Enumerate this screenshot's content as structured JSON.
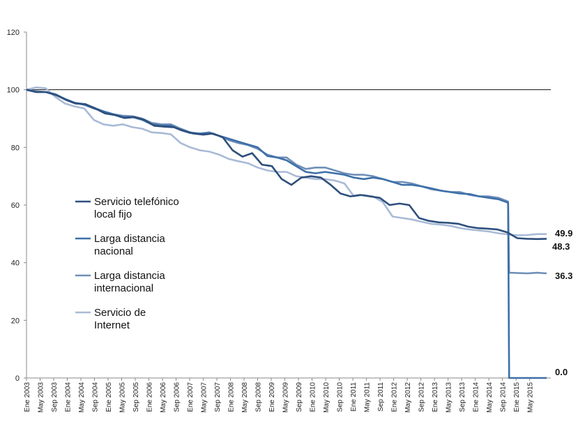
{
  "chart_data": {
    "type": "line",
    "title": "",
    "xlabel": "",
    "ylabel": "",
    "ylim": [
      0,
      120
    ],
    "yticks": [
      "0",
      "20",
      "40",
      "60",
      "80",
      "100",
      "120"
    ],
    "reference_line": 100,
    "grid": false,
    "legend_placement": "left-center",
    "x_tick_labels": [
      "Ene 2003",
      "May 2003",
      "Sep 2003",
      "Ene 2004",
      "May 2004",
      "Sep 2004",
      "Ene 2005",
      "May 2005",
      "Sep 2005",
      "Ene 2006",
      "May 2006",
      "Sep 2006",
      "Ene 2007",
      "May 2007",
      "Sep 2007",
      "Ene 2008",
      "May 2008",
      "Sep 2008",
      "Ene 2009",
      "May 2009",
      "Sep 2009",
      "Ene 2010",
      "May 2010",
      "Sep 2010",
      "Ene 2011",
      "May 2011",
      "Sep 2011",
      "Ene 2012",
      "May 2012",
      "Sep 2012",
      "Ene 2013",
      "May 2013",
      "Sep 2013",
      "Ene 2014",
      "May 2014",
      "Sep 2014",
      "Ene 2015",
      "May 2015"
    ],
    "series": [
      {
        "name": "Servicio telefónico local fijo",
        "color": "#2d4f7c",
        "end_label": "48.3",
        "values": [
          100,
          99.2,
          99.2,
          98.2,
          96.5,
          95.2,
          95,
          93.5,
          91.8,
          91.2,
          90.2,
          90.5,
          89.6,
          87.5,
          87.2,
          87,
          85.8,
          84.8,
          84.4,
          84.8,
          83.5,
          79,
          76.8,
          78,
          74,
          73.5,
          69,
          67,
          69.5,
          70,
          69.5,
          67,
          64,
          63,
          63.5,
          63,
          62.5,
          60,
          60.5,
          60,
          55.5,
          54.5,
          54,
          53.8,
          53.5,
          52.5,
          52,
          51.8,
          51.5,
          50.5,
          48.5,
          48.3,
          48.2,
          48.3
        ]
      },
      {
        "name": "Larga distancia nacional",
        "color": "#3d6fa8",
        "end_label": "0.0",
        "values": [
          100,
          99.2,
          99.2,
          98.2,
          96.8,
          95.5,
          94.8,
          93.5,
          92.5,
          91.5,
          90.5,
          90.5,
          89.6,
          88,
          87.5,
          87.5,
          86,
          85,
          84.8,
          85,
          84,
          83,
          82,
          81,
          80,
          77,
          76.5,
          75.5,
          73.5,
          71.5,
          71,
          71.5,
          71,
          70.5,
          69.5,
          69,
          69.5,
          69,
          68,
          67,
          67,
          66.5,
          65.8,
          65,
          64.5,
          64,
          63.8,
          63,
          62.5,
          62,
          60.8,
          0,
          0,
          0,
          0
        ]
      },
      {
        "name": "Larga distancia internacional",
        "color": "#6f8fb8",
        "end_label": "36.3",
        "values": [
          100,
          99.5,
          99.2,
          98.5,
          96.8,
          95.5,
          95,
          93.8,
          92.5,
          91.5,
          91,
          90.8,
          90,
          88.5,
          88,
          88,
          86.5,
          85.2,
          84.8,
          85.2,
          84,
          82.5,
          81.5,
          80.8,
          79.5,
          77.5,
          76.5,
          76.5,
          74,
          72.5,
          73,
          73,
          72,
          71,
          70.5,
          70.5,
          70,
          69,
          68,
          68,
          67.5,
          66.5,
          65.5,
          65,
          64.5,
          64.5,
          63.5,
          63,
          63,
          62.5,
          61.2,
          36.5,
          36.3,
          36.5,
          36.3
        ]
      },
      {
        "name": "Servicio de Internet",
        "color": "#a9bad6",
        "end_label": "49.9",
        "values": [
          100,
          100.8,
          100.5,
          97.5,
          95.2,
          94.2,
          93.5,
          89.5,
          88,
          87.5,
          88,
          87,
          86.5,
          85.2,
          85,
          84.5,
          81.5,
          80,
          79,
          78.5,
          77.5,
          76,
          75.2,
          74.5,
          73,
          72,
          71.5,
          71.5,
          70,
          69.5,
          69,
          69,
          68.5,
          67.5,
          63,
          63.5,
          63,
          61,
          56,
          55.5,
          55,
          54.2,
          53.5,
          53.2,
          52.8,
          52,
          51.5,
          51.2,
          50.8,
          50.2,
          49.8,
          49.5,
          49.6,
          49.9,
          49.9
        ]
      }
    ]
  }
}
